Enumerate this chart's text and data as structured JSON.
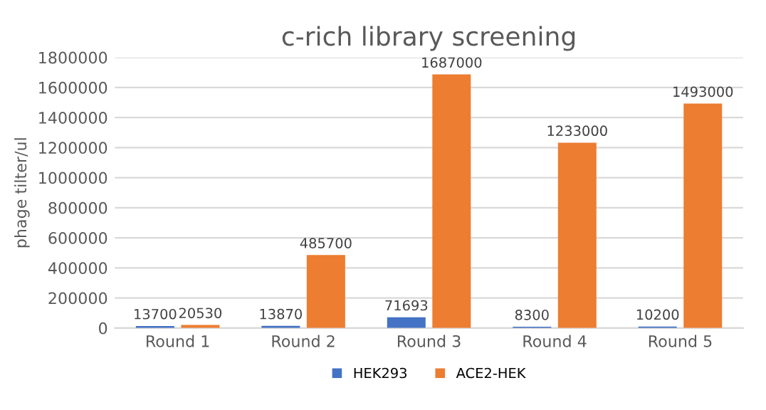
{
  "chart_data": {
    "type": "bar",
    "title": "c-rich library screening",
    "ylabel": "phage tilter/ul",
    "categories": [
      "Round 1",
      "Round 2",
      "Round 3",
      "Round 4",
      "Round 5"
    ],
    "series": [
      {
        "name": "HEK293",
        "color": "#4472c4",
        "values": [
          13700,
          13870,
          71693,
          8300,
          10200
        ]
      },
      {
        "name": "ACE2-HEK",
        "color": "#ed7d31",
        "values": [
          20530,
          485700,
          1687000,
          1233000,
          1493000
        ]
      }
    ],
    "ylim": [
      0,
      1800000
    ],
    "yticks": [
      0,
      200000,
      400000,
      600000,
      800000,
      1000000,
      1200000,
      1400000,
      1600000,
      1800000
    ],
    "grid": "y",
    "legend": "bottom",
    "data_labels": true
  }
}
